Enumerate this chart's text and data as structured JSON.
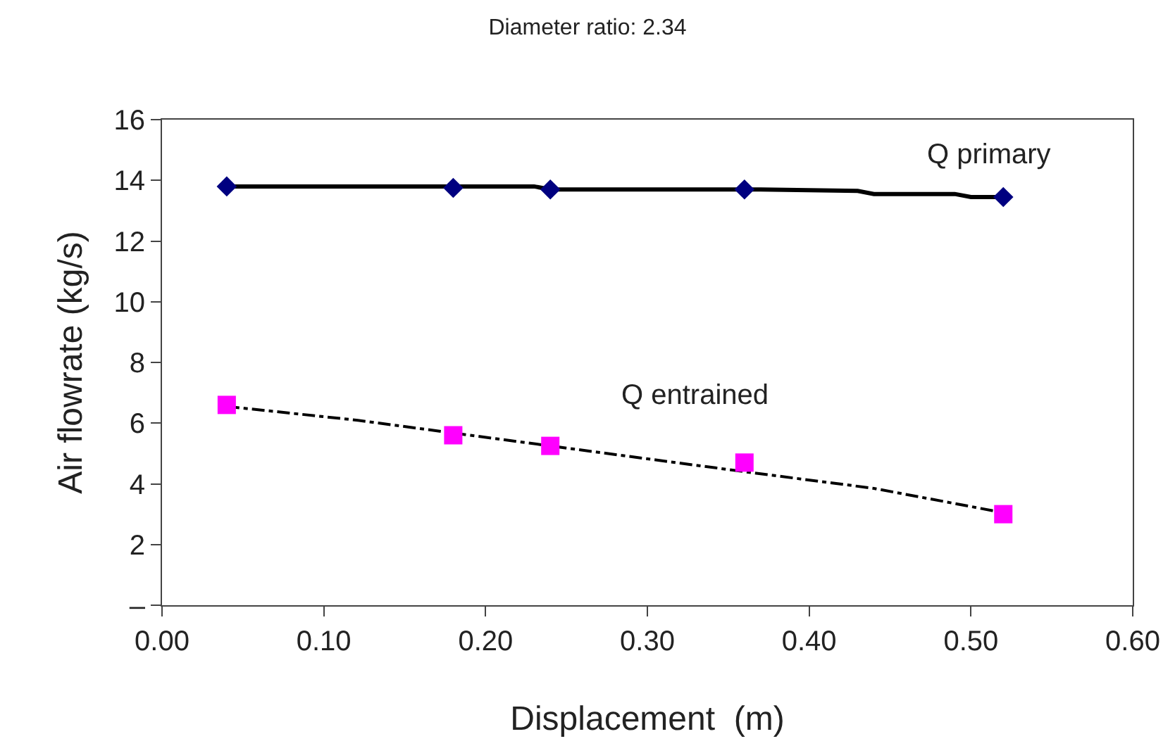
{
  "chart_data": {
    "type": "scatter",
    "title": "Diameter ratio: 2.34",
    "xlabel": "Displacement  (m)",
    "ylabel": "Air flowrate (kg/s)",
    "xlim": [
      0,
      0.6
    ],
    "xticks": [
      {
        "value": 0,
        "label": "0.00"
      },
      {
        "value": 0.1,
        "label": "0.10"
      },
      {
        "value": 0.2,
        "label": "0.20"
      },
      {
        "value": 0.3,
        "label": "0.30"
      },
      {
        "value": 0.4,
        "label": "0.40"
      },
      {
        "value": 0.5,
        "label": "0.50"
      },
      {
        "value": 0.6,
        "label": "0.60"
      }
    ],
    "ylim": [
      0,
      16
    ],
    "yticks": [
      {
        "value": 0,
        "label": "–"
      },
      2,
      4,
      6,
      8,
      10,
      12,
      14,
      16
    ],
    "legend": false,
    "series": [
      {
        "type": "line",
        "color": "#000000",
        "line_style": "solid",
        "marker": "none",
        "x": [
          0.04,
          0.23,
          0.24,
          0.37,
          0.43,
          0.44,
          0.49,
          0.5,
          0.52
        ],
        "values": [
          13.8,
          13.8,
          13.7,
          13.7,
          13.65,
          13.55,
          13.55,
          13.45,
          13.45
        ]
      },
      {
        "name": "Q primary",
        "color": "#000080",
        "marker": "diamond",
        "x": [
          0.04,
          0.18,
          0.24,
          0.36,
          0.52
        ],
        "values": [
          13.8,
          13.75,
          13.7,
          13.7,
          13.45
        ]
      },
      {
        "type": "line",
        "color": "#000000",
        "line_style": "dashed",
        "marker": "none",
        "x": [
          0.04,
          0.12,
          0.24,
          0.36,
          0.44,
          0.52
        ],
        "values": [
          6.55,
          6.1,
          5.25,
          4.4,
          3.85,
          3.05
        ]
      },
      {
        "name": "Q entrained",
        "color": "#ff00ff",
        "marker": "square",
        "x": [
          0.04,
          0.18,
          0.24,
          0.36,
          0.52
        ],
        "values": [
          6.6,
          5.6,
          5.25,
          4.7,
          3.0
        ]
      }
    ]
  }
}
